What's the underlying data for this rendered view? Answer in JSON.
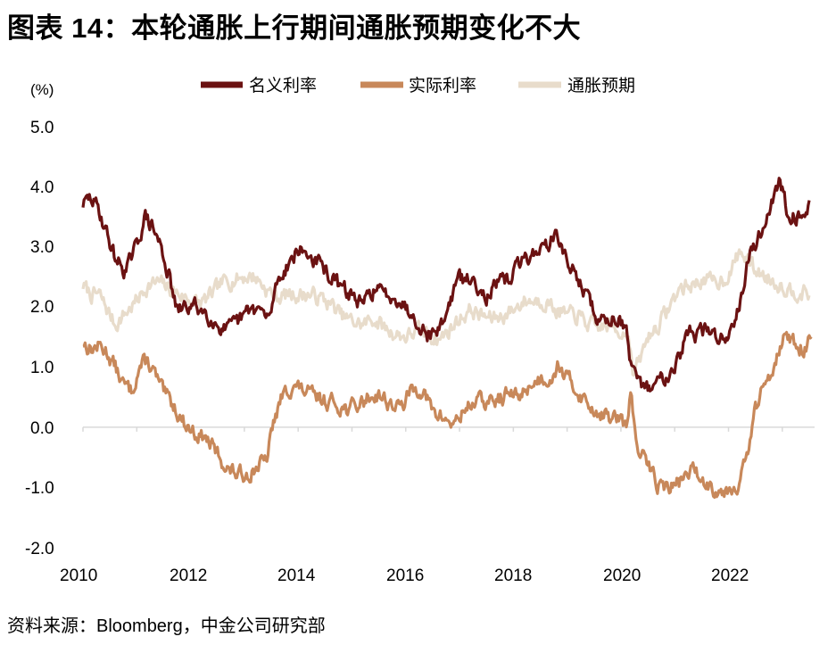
{
  "title": "图表 14：本轮通胀上行期间通胀预期变化不大",
  "source": "资料来源：Bloomberg，中金公司研究部",
  "colors": {
    "nominal": "#6b1212",
    "real": "#c8885a",
    "inflation": "#e8dccb",
    "axis": "#d9d9d9"
  },
  "chart_data": {
    "type": "line",
    "title": "本轮通胀上行期间通胀预期变化不大",
    "ylabel": "(%)",
    "xlabel": "",
    "ylim": [
      -2.0,
      5.0
    ],
    "xlim": [
      2010,
      2023.6
    ],
    "y_ticks": [
      "5.0",
      "4.0",
      "3.0",
      "2.0",
      "1.0",
      "0.0",
      "-1.0",
      "-2.0"
    ],
    "x_ticks": [
      "2010",
      "2012",
      "2014",
      "2016",
      "2018",
      "2020",
      "2022"
    ],
    "legend_position": "top",
    "series": [
      {
        "name": "名义利率",
        "x": [
          2010.0,
          2010.15,
          2010.3,
          2010.45,
          2010.6,
          2010.8,
          2011.0,
          2011.15,
          2011.3,
          2011.45,
          2011.6,
          2011.75,
          2011.9,
          2012.1,
          2012.3,
          2012.5,
          2012.7,
          2012.9,
          2013.1,
          2013.3,
          2013.45,
          2013.6,
          2013.8,
          2014.0,
          2014.2,
          2014.4,
          2014.6,
          2014.8,
          2015.0,
          2015.2,
          2015.4,
          2015.6,
          2015.8,
          2016.0,
          2016.2,
          2016.4,
          2016.6,
          2016.8,
          2016.95,
          2017.1,
          2017.3,
          2017.5,
          2017.7,
          2017.9,
          2018.1,
          2018.3,
          2018.5,
          2018.7,
          2018.85,
          2019.0,
          2019.2,
          2019.4,
          2019.6,
          2019.8,
          2019.95,
          2020.1,
          2020.18,
          2020.3,
          2020.5,
          2020.7,
          2020.9,
          2021.1,
          2021.25,
          2021.4,
          2021.6,
          2021.8,
          2022.0,
          2022.2,
          2022.4,
          2022.6,
          2022.8,
          2022.95,
          2023.1,
          2023.3,
          2023.5
        ],
        "values": [
          3.7,
          3.8,
          3.6,
          3.2,
          2.8,
          2.6,
          3.0,
          3.5,
          3.3,
          3.0,
          2.5,
          1.9,
          2.0,
          2.0,
          1.9,
          1.7,
          1.6,
          1.75,
          1.95,
          1.95,
          1.75,
          2.4,
          2.7,
          2.95,
          2.85,
          2.7,
          2.5,
          2.3,
          2.2,
          2.0,
          2.3,
          2.2,
          2.2,
          2.0,
          1.8,
          1.55,
          1.6,
          2.0,
          2.45,
          2.45,
          2.4,
          2.2,
          2.35,
          2.45,
          2.7,
          2.85,
          2.95,
          3.1,
          3.15,
          2.7,
          2.5,
          2.1,
          1.75,
          1.8,
          1.85,
          1.6,
          1.0,
          0.7,
          0.65,
          0.75,
          0.95,
          1.2,
          1.6,
          1.55,
          1.6,
          1.5,
          1.5,
          2.1,
          2.9,
          3.2,
          3.75,
          4.05,
          3.6,
          3.5,
          3.7
        ]
      },
      {
        "name": "实际利率",
        "x": [
          2010.0,
          2010.15,
          2010.3,
          2010.45,
          2010.6,
          2010.75,
          2010.9,
          2011.05,
          2011.2,
          2011.35,
          2011.5,
          2011.7,
          2011.9,
          2012.1,
          2012.3,
          2012.5,
          2012.7,
          2012.9,
          2013.1,
          2013.3,
          2013.4,
          2013.55,
          2013.7,
          2013.9,
          2014.1,
          2014.3,
          2014.5,
          2014.7,
          2014.9,
          2015.1,
          2015.3,
          2015.5,
          2015.7,
          2015.9,
          2016.1,
          2016.3,
          2016.5,
          2016.7,
          2016.9,
          2017.1,
          2017.3,
          2017.5,
          2017.7,
          2017.9,
          2018.1,
          2018.3,
          2018.5,
          2018.7,
          2018.85,
          2019.0,
          2019.2,
          2019.4,
          2019.6,
          2019.8,
          2019.95,
          2020.1,
          2020.18,
          2020.3,
          2020.5,
          2020.7,
          2020.9,
          2021.1,
          2021.3,
          2021.5,
          2021.7,
          2021.9,
          2022.05,
          2022.2,
          2022.35,
          2022.5,
          2022.65,
          2022.8,
          2023.0,
          2023.2,
          2023.4,
          2023.55
        ],
        "values": [
          1.4,
          1.3,
          1.35,
          1.25,
          1.0,
          0.7,
          0.6,
          1.0,
          1.1,
          0.85,
          0.55,
          0.35,
          0.05,
          -0.1,
          -0.2,
          -0.45,
          -0.7,
          -0.8,
          -0.75,
          -0.6,
          -0.6,
          0.1,
          0.5,
          0.7,
          0.6,
          0.5,
          0.45,
          0.4,
          0.3,
          0.35,
          0.5,
          0.55,
          0.4,
          0.3,
          0.6,
          0.65,
          0.25,
          0.15,
          0.05,
          0.3,
          0.45,
          0.4,
          0.45,
          0.55,
          0.5,
          0.7,
          0.8,
          0.85,
          1.05,
          0.8,
          0.6,
          0.35,
          0.25,
          0.15,
          0.15,
          -0.05,
          0.65,
          -0.4,
          -0.6,
          -0.95,
          -1.0,
          -0.9,
          -0.7,
          -0.85,
          -1.0,
          -1.05,
          -1.0,
          -0.9,
          -0.5,
          0.3,
          0.65,
          0.95,
          1.5,
          1.4,
          1.3,
          1.5
        ]
      },
      {
        "name": "通胀预期",
        "x": [
          2010.0,
          2010.15,
          2010.3,
          2010.45,
          2010.6,
          2010.8,
          2011.0,
          2011.2,
          2011.4,
          2011.6,
          2011.8,
          2012.0,
          2012.2,
          2012.4,
          2012.6,
          2012.8,
          2013.0,
          2013.2,
          2013.4,
          2013.6,
          2013.8,
          2014.0,
          2014.2,
          2014.4,
          2014.6,
          2014.8,
          2015.0,
          2015.2,
          2015.4,
          2015.6,
          2015.8,
          2016.0,
          2016.2,
          2016.4,
          2016.6,
          2016.8,
          2017.0,
          2017.2,
          2017.4,
          2017.6,
          2017.8,
          2018.0,
          2018.2,
          2018.4,
          2018.6,
          2018.8,
          2019.0,
          2019.2,
          2019.4,
          2019.6,
          2019.8,
          2020.0,
          2020.15,
          2020.22,
          2020.35,
          2020.5,
          2020.7,
          2020.9,
          2021.1,
          2021.3,
          2021.5,
          2021.7,
          2021.9,
          2022.05,
          2022.2,
          2022.35,
          2022.5,
          2022.7,
          2022.9,
          2023.1,
          2023.3,
          2023.5
        ],
        "values": [
          2.35,
          2.2,
          2.2,
          1.95,
          1.7,
          1.9,
          2.1,
          2.35,
          2.4,
          2.3,
          2.2,
          2.1,
          2.05,
          2.2,
          2.4,
          2.45,
          2.5,
          2.5,
          2.3,
          2.15,
          2.2,
          2.2,
          2.2,
          2.15,
          2.05,
          1.85,
          1.75,
          1.7,
          1.8,
          1.65,
          1.55,
          1.5,
          1.6,
          1.55,
          1.45,
          1.6,
          1.8,
          1.95,
          1.85,
          1.8,
          1.85,
          1.95,
          2.1,
          2.1,
          2.1,
          1.95,
          1.85,
          1.85,
          1.7,
          1.65,
          1.7,
          1.6,
          1.55,
          0.85,
          1.1,
          1.5,
          1.7,
          2.0,
          2.3,
          2.35,
          2.45,
          2.4,
          2.45,
          2.6,
          2.9,
          2.8,
          2.6,
          2.5,
          2.4,
          2.3,
          2.25,
          2.2
        ]
      }
    ]
  }
}
